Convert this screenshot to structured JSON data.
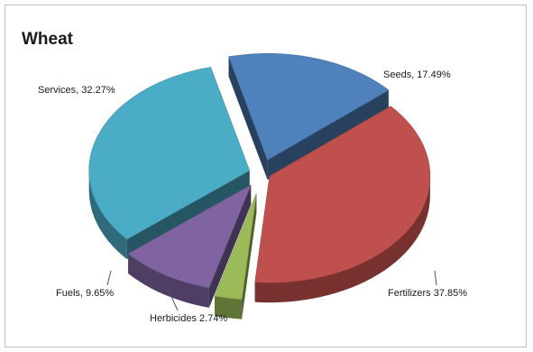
{
  "chart_data": {
    "type": "pie",
    "title": "Wheat",
    "slices": [
      {
        "label": "Seeds",
        "value": 17.49,
        "display": "Seeds, 17.49%",
        "color": "#4f81bd"
      },
      {
        "label": "Fertilizers",
        "value": 37.85,
        "display": "Fertilizers 37.85%",
        "color": "#c0504d"
      },
      {
        "label": "Herbicides",
        "value": 2.74,
        "display": "Herbicides 2.74%",
        "color": "#9bbb59"
      },
      {
        "label": "Fuels",
        "value": 9.65,
        "display": "Fuels, 9.65%",
        "color": "#8064a2"
      },
      {
        "label": "Services",
        "value": 32.27,
        "display": "Services, 32.27%",
        "color": "#4bacc6"
      }
    ],
    "exploded": true,
    "style": "3d"
  }
}
